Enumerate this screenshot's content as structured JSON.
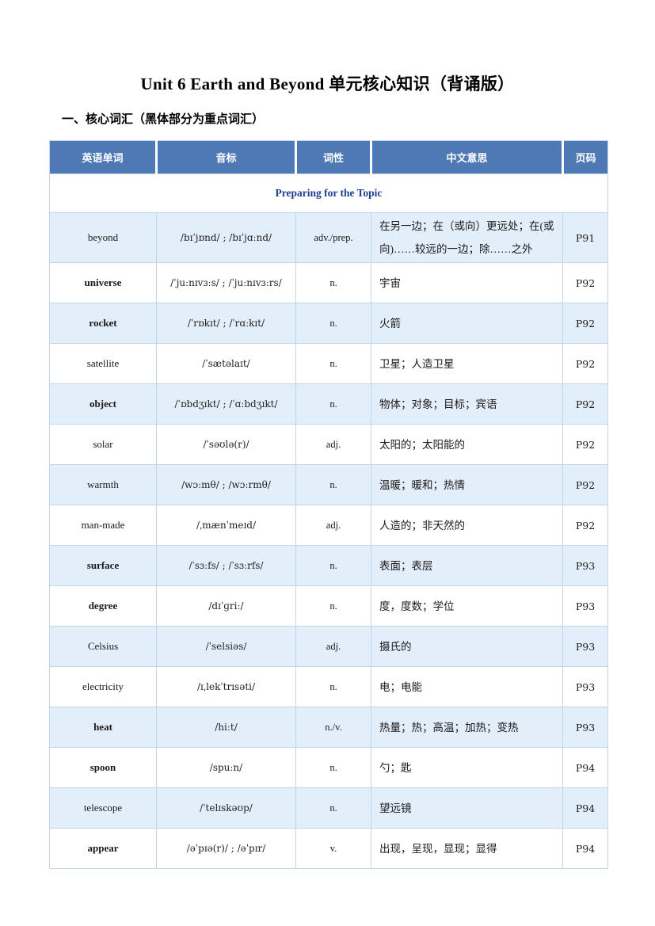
{
  "page": {
    "title": "Unit 6 Earth and Beyond 单元核心知识（背诵版）",
    "section_heading": "一、核心词汇（黑体部分为重点词汇）"
  },
  "colors": {
    "header_bg": "#4E79B5",
    "header_text": "#ffffff",
    "shaded_row_bg": "#e2eefa",
    "group_row_text": "#1F3F8E",
    "table_border": "#c3d5e9"
  },
  "table": {
    "headers": [
      "英语单词",
      "音标",
      "词性",
      "中文意思",
      "页码"
    ],
    "group_row_label": "Preparing for the Topic",
    "rows": [
      {
        "word": "beyond",
        "bold": false,
        "shaded": true,
        "phonetic": "/bɪˈjɒnd/ ; /bɪˈjɑːnd/",
        "pos": "adv./prep.",
        "meaning": "在另一边；在（或向）更远处；在(或向)……较远的一边；除……之外",
        "page": "P91"
      },
      {
        "word": "universe",
        "bold": true,
        "shaded": false,
        "phonetic": "/ˈjuːnɪvɜːs/ ; /ˈjuːnɪvɜːrs/",
        "pos": "n.",
        "meaning": "宇宙",
        "page": "P92"
      },
      {
        "word": "rocket",
        "bold": true,
        "shaded": true,
        "phonetic": "/ˈrɒkɪt/ ; /ˈrɑːkɪt/",
        "pos": "n.",
        "meaning": "火箭",
        "page": "P92"
      },
      {
        "word": "satellite",
        "bold": false,
        "shaded": false,
        "phonetic": "/ˈsætəlaɪt/",
        "pos": "n.",
        "meaning": "卫星；人造卫星",
        "page": "P92"
      },
      {
        "word": "object",
        "bold": true,
        "shaded": true,
        "phonetic": "/ˈɒbdʒɪkt/ ; /ˈɑːbdʒɪkt/",
        "pos": "n.",
        "meaning": "物体；对象；目标；宾语",
        "page": "P92"
      },
      {
        "word": "solar",
        "bold": false,
        "shaded": false,
        "phonetic": "/ˈsəʊlə(r)/",
        "pos": "adj.",
        "meaning": "太阳的；太阳能的",
        "page": "P92"
      },
      {
        "word": "warmth",
        "bold": false,
        "shaded": true,
        "phonetic": "/wɔːmθ/ ; /wɔːrmθ/",
        "pos": "n.",
        "meaning": "温暖；暖和；热情",
        "page": "P92"
      },
      {
        "word": "man-made",
        "bold": false,
        "shaded": false,
        "phonetic": "/ˌmænˈmeɪd/",
        "pos": "adj.",
        "meaning": "人造的；非天然的",
        "page": "P92"
      },
      {
        "word": "surface",
        "bold": true,
        "shaded": true,
        "phonetic": "/ˈsɜːfs/ ; /ˈsɜːrfs/",
        "pos": "n.",
        "meaning": "表面；表层",
        "page": "P93"
      },
      {
        "word": "degree",
        "bold": true,
        "shaded": false,
        "phonetic": "/dɪˈɡriː/",
        "pos": "n.",
        "meaning": "度，度数；学位",
        "page": "P93"
      },
      {
        "word": "Celsius",
        "bold": false,
        "shaded": true,
        "phonetic": "/ˈselsiəs/",
        "pos": "adj.",
        "meaning": "摄氏的",
        "page": "P93"
      },
      {
        "word": "electricity",
        "bold": false,
        "shaded": false,
        "phonetic": "/ɪˌlekˈtrɪsəti/",
        "pos": "n.",
        "meaning": "电；电能",
        "page": "P93"
      },
      {
        "word": "heat",
        "bold": true,
        "shaded": true,
        "phonetic": "/hiːt/",
        "pos": "n./v.",
        "meaning": "热量；热；高温；加热；变热",
        "page": "P93"
      },
      {
        "word": "spoon",
        "bold": true,
        "shaded": false,
        "phonetic": "/spuːn/",
        "pos": "n.",
        "meaning": "勺；匙",
        "page": "P94"
      },
      {
        "word": "telescope",
        "bold": false,
        "shaded": true,
        "phonetic": "/ˈtelɪskəʊp/",
        "pos": "n.",
        "meaning": "望远镜",
        "page": "P94"
      },
      {
        "word": "appear",
        "bold": true,
        "shaded": false,
        "phonetic": "/əˈpɪə(r)/ ; /əˈpɪr/",
        "pos": "v.",
        "meaning": "出现，呈现，显现；显得",
        "page": "P94"
      }
    ]
  }
}
